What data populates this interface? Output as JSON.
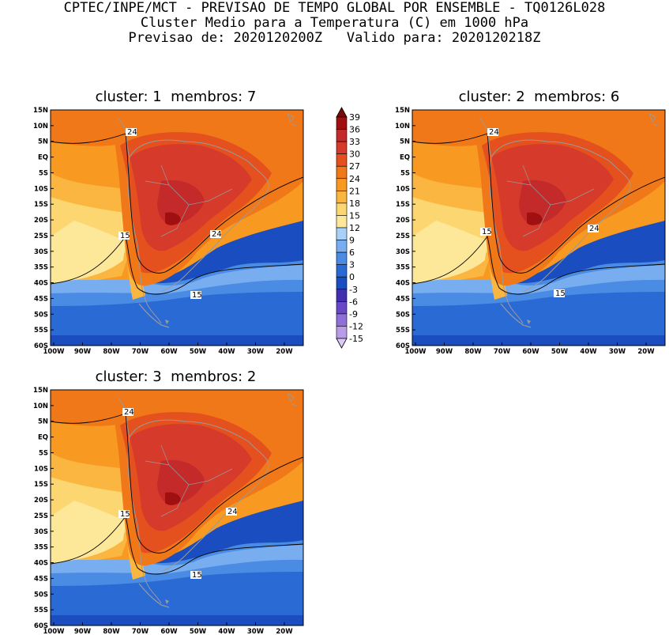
{
  "title": {
    "line1": "CPTEC/INPE/MCT - PREVISAO DE TEMPO GLOBAL POR ENSEMBLE - TQ0126L028",
    "line2": "Cluster Medio para a Temperatura (C) em 1000 hPa",
    "line3": "Previsao de: 2020120200Z   Valido para: 2020120218Z"
  },
  "panels": [
    {
      "title": "cluster: 1  membros: 7",
      "contour_labels": [
        "24",
        "24",
        "15",
        "15"
      ]
    },
    {
      "title": "cluster: 2  membros: 6",
      "contour_labels": [
        "24",
        "24",
        "15",
        "15"
      ]
    },
    {
      "title": "cluster: 3  membros: 2",
      "contour_labels": [
        "24",
        "24",
        "15",
        "15"
      ]
    }
  ],
  "axes": {
    "lat_labels": [
      "15N",
      "10N",
      "5N",
      "EQ",
      "5S",
      "10S",
      "15S",
      "20S",
      "25S",
      "30S",
      "35S",
      "40S",
      "45S",
      "50S",
      "55S",
      "60S"
    ],
    "lon_labels": [
      "100W",
      "90W",
      "80W",
      "70W",
      "60W",
      "50W",
      "40W",
      "30W",
      "20W"
    ]
  },
  "colorbar": {
    "labels": [
      "39",
      "36",
      "33",
      "30",
      "27",
      "24",
      "21",
      "18",
      "15",
      "12",
      "9",
      "6",
      "3",
      "0",
      "-3",
      "-6",
      "-9",
      "-12",
      "-15"
    ],
    "colors": [
      "#7a0a0a",
      "#a01010",
      "#c42a2a",
      "#d63a2a",
      "#e4501e",
      "#f07818",
      "#f89a22",
      "#fab640",
      "#fcd670",
      "#fde89a",
      "#a8d0f8",
      "#78aef0",
      "#4a8ce4",
      "#2a6ad4",
      "#1a4ec0",
      "#4030b0",
      "#6848c8",
      "#9070d8",
      "#b89ce8",
      "#dccaf6"
    ]
  },
  "colors": {
    "ocean_cold_1": "#1a4ec0",
    "ocean_cold_2": "#2a6ad4",
    "ocean_cool": "#4a8ce4",
    "light_blue": "#78aef0",
    "pale_yellow": "#fde89a",
    "yellow": "#fcd670",
    "orange_light": "#fab640",
    "orange": "#f89a22",
    "orange_deep": "#f07818",
    "red_orange": "#e4501e",
    "red": "#d63a2a",
    "dark_red": "#c42a2a",
    "coast_gray": "#9a9a9a"
  }
}
